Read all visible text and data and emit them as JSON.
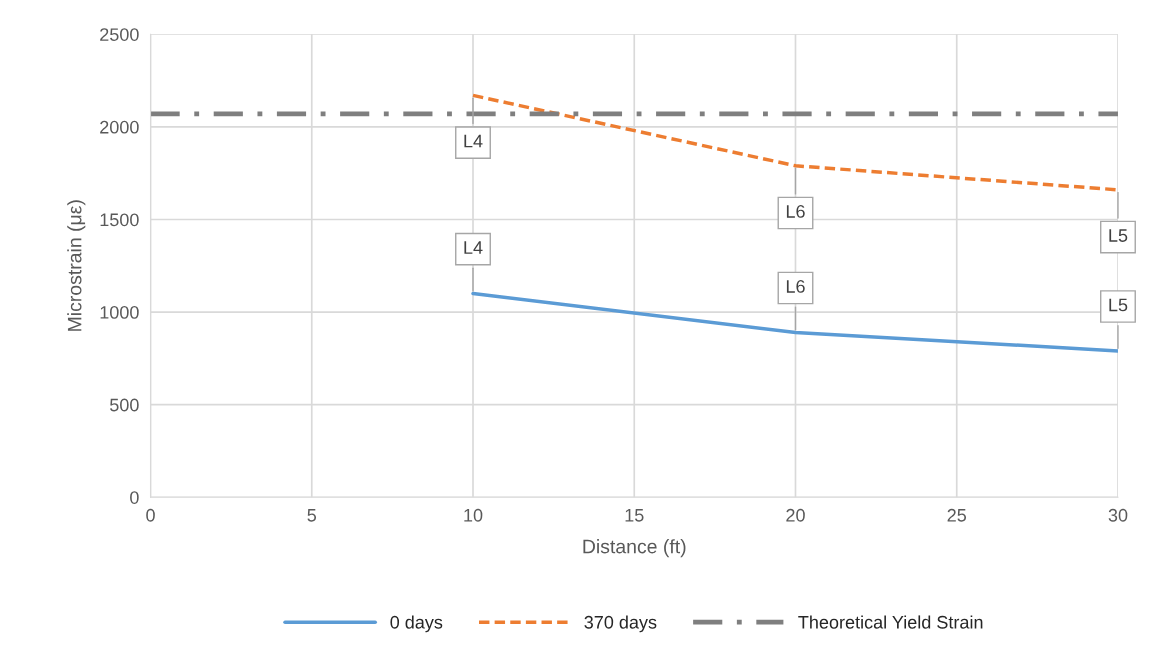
{
  "chart_data": {
    "type": "line",
    "xlabel": "Distance (ft)",
    "ylabel": "Microstrain (με)",
    "series": [
      {
        "name": "0 days",
        "color": "#5b9bd5",
        "x": [
          10,
          20,
          30
        ],
        "values": [
          1100,
          890,
          790
        ],
        "line_style": "solid"
      },
      {
        "name": "370 days",
        "color": "#ed7d31",
        "x": [
          10,
          20,
          30
        ],
        "values": [
          2170,
          1790,
          1660
        ],
        "line_style": "dashed"
      },
      {
        "name": "Theoretical Yield Strain",
        "color": "#7f7f7f",
        "x": [
          0,
          30
        ],
        "values": [
          2070,
          2070
        ],
        "line_style": "dashdot"
      }
    ],
    "annotations": [
      {
        "text": "L4",
        "x": 10,
        "y": 1100
      },
      {
        "text": "L6",
        "x": 20,
        "y": 890
      },
      {
        "text": "L5",
        "x": 30,
        "y": 790
      },
      {
        "text": "L4",
        "x": 10,
        "y": 2170
      },
      {
        "text": "L6",
        "x": 20,
        "y": 1790
      },
      {
        "text": "L5",
        "x": 30,
        "y": 1660
      }
    ],
    "xlim": [
      0,
      30
    ],
    "xticks": [
      0,
      5,
      10,
      15,
      20,
      25,
      30
    ],
    "ylim": [
      0,
      2500
    ],
    "yticks": [
      0,
      500,
      1000,
      1500,
      2000,
      2500
    ],
    "grid": true,
    "legend": "bottom",
    "marker": "none"
  }
}
